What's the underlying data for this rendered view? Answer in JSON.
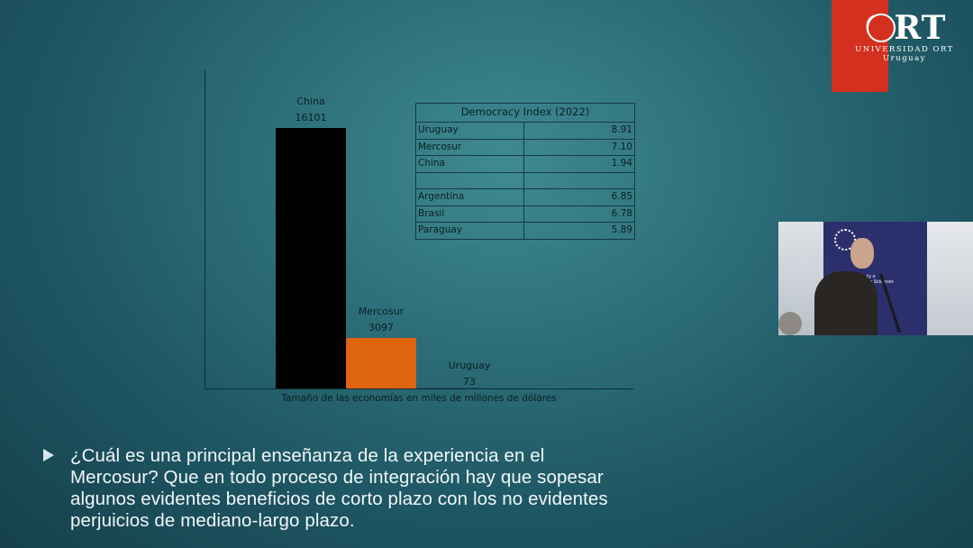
{
  "chart_data": {
    "type": "bar",
    "categories": [
      "China",
      "Mercosur",
      "Uruguay"
    ],
    "values": [
      16101,
      3097,
      73
    ],
    "colors": [
      "#000000",
      "#e0640f",
      "#1e5663"
    ],
    "xlabel": "Tamaño de las economías en miles de millones de dólares",
    "ylim": [
      0,
      18000
    ],
    "grid": false
  },
  "democracy_table": {
    "title": "Democracy Index (2022)",
    "rows": [
      {
        "name": "Uruguay",
        "value": "8.91"
      },
      {
        "name": "Mercosur",
        "value": "7.10"
      },
      {
        "name": "China",
        "value": "1.94"
      },
      {
        "name": "",
        "value": ""
      },
      {
        "name": "Argentina",
        "value": "6.85"
      },
      {
        "name": "Brasil",
        "value": "6.78"
      },
      {
        "name": "Paraguay",
        "value": "5.89"
      }
    ]
  },
  "bullet": {
    "lines": [
      "¿Cuál es una principal enseñanza de la experiencia en el",
      "Mercosur? Que en todo proceso de integración hay que sopesar",
      "algunos evidentes beneficios de corto plazo con los no evidentes",
      "perjuicios de mediano-largo plazo."
    ]
  },
  "logo": {
    "word": "ORT",
    "line1": "UNIVERSIDAD ORT",
    "line2": "Uruguay",
    "accent": "#d3301f"
  },
  "webcam": {
    "banner_text": [
      "ty o",
      "on Sciences"
    ]
  },
  "icons": [
    "play-bullet-icon",
    "ort-globe-icon"
  ]
}
